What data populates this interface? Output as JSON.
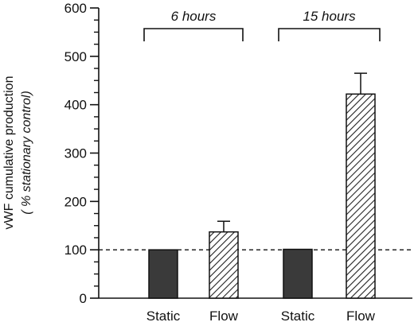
{
  "chart_data": {
    "type": "bar",
    "ylabel": "vWF cumulative production",
    "ylabel_sub": "( % stationary control)",
    "ylim": [
      0,
      600
    ],
    "yticks": [
      0,
      100,
      200,
      300,
      400,
      500,
      600
    ],
    "reference_line": 100,
    "groups": [
      {
        "label": "6 hours",
        "bars": [
          {
            "category": "Static",
            "value": 100,
            "error": 0,
            "fill": "solid"
          },
          {
            "category": "Flow",
            "value": 137,
            "error": 22,
            "fill": "hatched"
          }
        ]
      },
      {
        "label": "15 hours",
        "bars": [
          {
            "category": "Static",
            "value": 101,
            "error": 0,
            "fill": "solid"
          },
          {
            "category": "Flow",
            "value": 422,
            "error": 43,
            "fill": "hatched"
          }
        ]
      }
    ],
    "colors": {
      "solid": "#3a3a3a",
      "hatched": "#222222",
      "line": "#111111"
    }
  }
}
